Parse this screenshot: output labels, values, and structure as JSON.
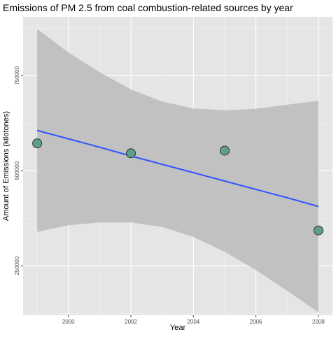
{
  "chart_data": {
    "type": "scatter",
    "title": "Emissions of PM 2.5 from coal combustion-related sources by year",
    "xlabel": "Year",
    "ylabel": "Amount of Emissions (kilotones)",
    "x": [
      1999,
      2002,
      2005,
      2008
    ],
    "y": [
      572000,
      546000,
      553000,
      343000
    ],
    "trend_line": {
      "method": "linear regression with confidence band",
      "line_color": "#3355ff",
      "band_color": "#bdbdbd",
      "x": [
        1999,
        2000,
        2001,
        2002,
        2003,
        2004,
        2005,
        2006,
        2007,
        2008
      ],
      "fit": [
        606000,
        584000,
        562000,
        539000,
        517000,
        495000,
        473000,
        451000,
        429000,
        406000
      ],
      "lower": [
        339000,
        357000,
        364000,
        364000,
        352000,
        326000,
        287000,
        239000,
        184000,
        128000
      ],
      "upper": [
        873000,
        811000,
        759000,
        714000,
        682000,
        664000,
        659000,
        663000,
        674000,
        684000
      ]
    },
    "xlim": [
      1998.55,
      2008.45
    ],
    "ylim": [
      120000,
      905000
    ],
    "x_ticks": [
      2000,
      2002,
      2004,
      2006,
      2008
    ],
    "x_tick_labels": [
      "2000",
      "2002",
      "2004",
      "2006",
      "2008"
    ],
    "y_ticks": [
      250000,
      500000,
      750000
    ],
    "y_tick_labels": [
      "250000",
      "500000",
      "750000"
    ],
    "grid": true,
    "point_color": "#5f9e8a",
    "panel_color": "#e5e5e5",
    "legend": "none"
  }
}
